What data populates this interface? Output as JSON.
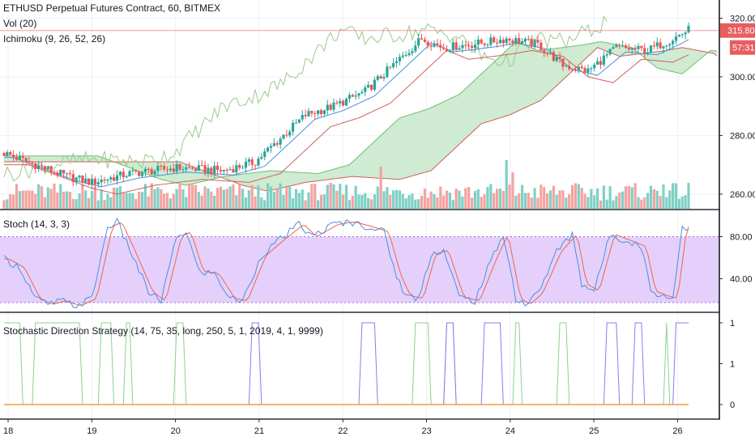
{
  "colors": {
    "up": "#26a69a",
    "down": "#ef5350",
    "vol_up": "#7fd0c4",
    "vol_down": "#f4a3a1",
    "stoch_k": "#4a90e2",
    "stoch_d": "#f0654b",
    "band_fill": "#e4d0fb",
    "cloud_green": "#c7e8c9",
    "cloud_red": "#f7cfce",
    "strategy_green": "#8fd08f",
    "strategy_blue": "#7f7ff5",
    "strategy_orange": "#f29c38",
    "price_tag": "#e85e5e",
    "ichimoku_base": "#d16060",
    "ichimoku_conv": "#4a90e2",
    "lagging": "#9cc98a"
  },
  "header": {
    "title": "ETHUSD Perpetual Futures Contract, 60, BITMEX",
    "vol_label": "Vol (20)",
    "ichimoku_label": "Ichimoku (9, 26, 52, 26)",
    "stoch_label": "Stoch (14, 3, 3)",
    "strategy_label": "Stochastic Direction Strategy (14, 75, 35, long, 250, 5, 1, 2019, 4, 1, 9999)"
  },
  "price_axis": {
    "ticks": [
      {
        "value": 320,
        "label": "320.00"
      },
      {
        "value": 300,
        "label": "300.00"
      },
      {
        "value": 280,
        "label": "280.00"
      },
      {
        "value": 260,
        "label": "260.00"
      }
    ],
    "last_price_label": "315.80",
    "countdown_label": "57:31"
  },
  "stoch_axis": {
    "ticks": [
      {
        "value": 80,
        "label": "80.00"
      },
      {
        "value": 40,
        "label": "40.00"
      }
    ]
  },
  "strategy_axis": {
    "ticks": [
      {
        "value": 1,
        "label": "1"
      },
      {
        "value": 0.5,
        "label": "1"
      },
      {
        "value": 0,
        "label": "0"
      }
    ]
  },
  "time_axis": {
    "labels": [
      "18",
      "19",
      "20",
      "21",
      "22",
      "23",
      "24",
      "25",
      "26"
    ]
  },
  "chart_data": {
    "type": "candlestick",
    "symbol": "ETHUSD",
    "interval": "60",
    "price_range": [
      255,
      324
    ],
    "price_anchors": [
      [
        0,
        274
      ],
      [
        10,
        270
      ],
      [
        20,
        266
      ],
      [
        28,
        264
      ],
      [
        40,
        267
      ],
      [
        55,
        269
      ],
      [
        70,
        268
      ],
      [
        80,
        271
      ],
      [
        88,
        279
      ],
      [
        96,
        287
      ],
      [
        105,
        290
      ],
      [
        115,
        295
      ],
      [
        125,
        305
      ],
      [
        133,
        313
      ],
      [
        140,
        310
      ],
      [
        148,
        311
      ],
      [
        155,
        312
      ],
      [
        160,
        313
      ],
      [
        170,
        311
      ],
      [
        178,
        304
      ],
      [
        186,
        302
      ],
      [
        195,
        310
      ],
      [
        205,
        309
      ],
      [
        213,
        313
      ],
      [
        218,
        316
      ]
    ],
    "stoch_k_anchors": [
      [
        0,
        62
      ],
      [
        5,
        55
      ],
      [
        10,
        30
      ],
      [
        14,
        25
      ],
      [
        18,
        28
      ],
      [
        23,
        24
      ],
      [
        28,
        30
      ],
      [
        33,
        88
      ],
      [
        36,
        92
      ],
      [
        40,
        70
      ],
      [
        46,
        35
      ],
      [
        50,
        28
      ],
      [
        55,
        80
      ],
      [
        58,
        84
      ],
      [
        62,
        52
      ],
      [
        67,
        50
      ],
      [
        72,
        30
      ],
      [
        76,
        28
      ],
      [
        82,
        65
      ],
      [
        88,
        78
      ],
      [
        94,
        90
      ],
      [
        98,
        80
      ],
      [
        105,
        90
      ],
      [
        110,
        92
      ],
      [
        116,
        88
      ],
      [
        121,
        84
      ],
      [
        125,
        48
      ],
      [
        128,
        32
      ],
      [
        132,
        30
      ],
      [
        136,
        66
      ],
      [
        140,
        69
      ],
      [
        145,
        31
      ],
      [
        150,
        28
      ],
      [
        155,
        60
      ],
      [
        159,
        82
      ],
      [
        163,
        30
      ],
      [
        166,
        25
      ],
      [
        170,
        34
      ],
      [
        176,
        68
      ],
      [
        181,
        82
      ],
      [
        184,
        42
      ],
      [
        188,
        36
      ],
      [
        193,
        82
      ],
      [
        197,
        78
      ],
      [
        203,
        72
      ],
      [
        206,
        36
      ],
      [
        210,
        32
      ],
      [
        213,
        30
      ],
      [
        216,
        88
      ]
    ],
    "volume": {
      "spikes": [
        [
          120,
          52
        ],
        [
          160,
          60
        ],
        [
          162,
          45
        ],
        [
          210,
          30
        ]
      ],
      "base": 10
    },
    "strategy_series": [
      {
        "name": "long",
        "color": "strategy_blue"
      },
      {
        "name": "short",
        "color": "strategy_green"
      },
      {
        "name": "flat",
        "color": "strategy_orange"
      }
    ],
    "strategy_ranges_blue": [
      [
        0,
        0
      ],
      [
        78,
        0
      ],
      [
        79,
        1
      ],
      [
        81,
        1
      ],
      [
        82,
        0
      ],
      [
        113,
        0
      ],
      [
        114,
        1
      ],
      [
        118,
        1
      ],
      [
        119,
        0
      ],
      [
        140,
        0
      ],
      [
        141,
        1
      ],
      [
        143,
        1
      ],
      [
        144,
        0
      ],
      [
        152,
        0
      ],
      [
        153,
        1
      ],
      [
        158,
        1
      ],
      [
        159,
        0
      ],
      [
        191,
        0
      ],
      [
        192,
        1
      ],
      [
        195,
        1
      ],
      [
        196,
        0
      ],
      [
        200,
        0
      ],
      [
        201,
        1
      ],
      [
        203,
        1
      ],
      [
        204,
        0
      ],
      [
        213,
        0
      ],
      [
        214,
        1
      ],
      [
        218,
        1
      ]
    ],
    "strategy_ranges_green": [
      [
        0,
        1
      ],
      [
        5,
        1
      ],
      [
        6,
        0
      ],
      [
        9,
        0
      ],
      [
        10,
        1
      ],
      [
        24,
        1
      ],
      [
        25,
        0
      ],
      [
        30,
        0
      ],
      [
        31,
        1
      ],
      [
        34,
        1
      ],
      [
        35,
        0
      ],
      [
        38,
        0
      ],
      [
        39,
        1
      ],
      [
        40,
        1
      ],
      [
        41,
        0
      ],
      [
        54,
        0
      ],
      [
        55,
        1
      ],
      [
        57,
        1
      ],
      [
        58,
        0
      ],
      [
        130,
        0
      ],
      [
        131,
        1
      ],
      [
        135,
        1
      ],
      [
        136,
        0
      ],
      [
        140,
        0
      ],
      [
        141,
        1
      ],
      [
        143,
        1
      ],
      [
        144,
        0
      ],
      [
        162,
        0
      ],
      [
        163,
        1
      ],
      [
        164,
        1
      ],
      [
        165,
        0
      ],
      [
        176,
        0
      ],
      [
        177,
        1
      ],
      [
        179,
        1
      ],
      [
        180,
        0
      ],
      [
        210,
        0
      ],
      [
        211,
        1
      ],
      [
        212,
        0
      ],
      [
        218,
        0
      ]
    ],
    "n_bars": 219
  }
}
